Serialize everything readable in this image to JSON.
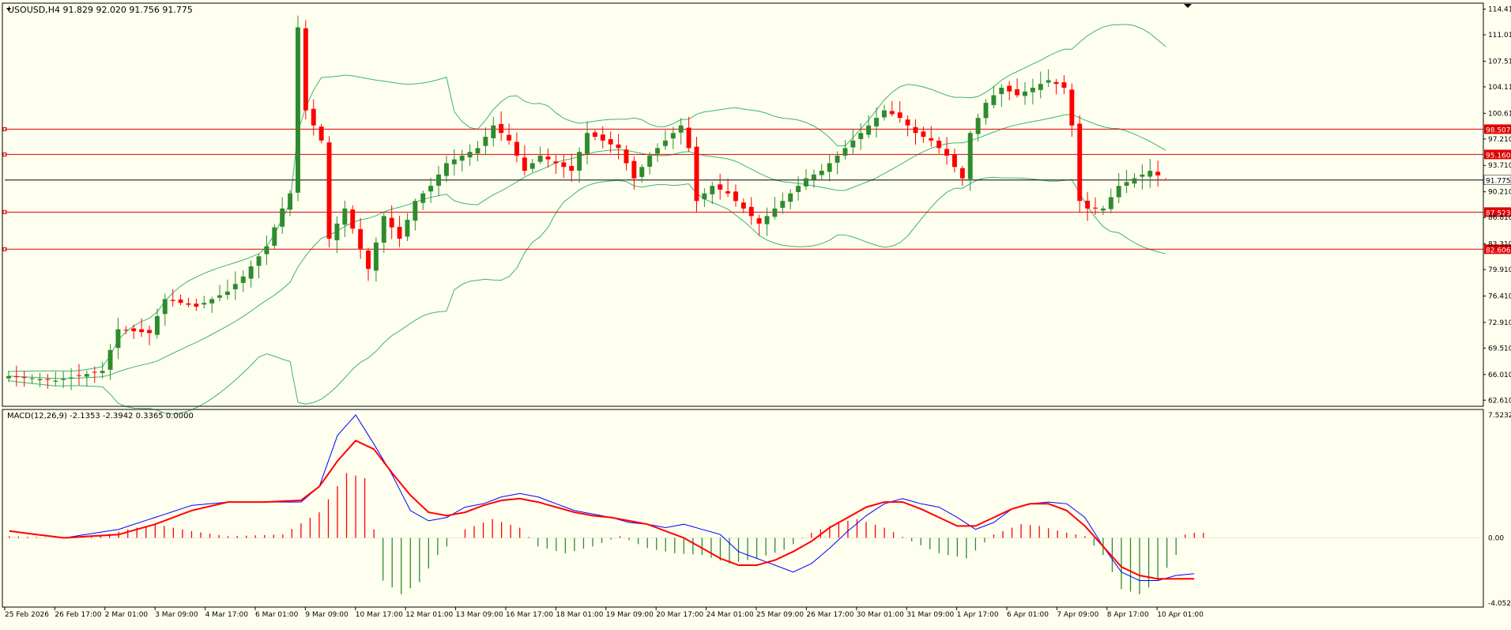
{
  "header": {
    "symbol_line": "USOUSD,H4  91.829 92.020 91.756 91.775"
  },
  "colors": {
    "background": "#fffff0",
    "bull": "#2e8b2e",
    "bear": "#ff0000",
    "band": "#3cb371",
    "hline": "#e00000",
    "price_line": "#000000",
    "macd_line": "#0000ff",
    "signal_line": "#ff0000"
  },
  "chart_data": [
    {
      "type": "candlestick",
      "title": "USOUSD,H4",
      "ohlc_readout": {
        "open": 91.829,
        "high": 92.02,
        "low": 91.756,
        "close": 91.775
      },
      "current_price": 91.775,
      "ylim": [
        61.8,
        115.2
      ],
      "y_ticks": [
        "114.410",
        "111.010",
        "107.510",
        "104.110",
        "100.610",
        "97.210",
        "93.710",
        "90.210",
        "86.810",
        "83.310",
        "79.910",
        "76.410",
        "72.910",
        "69.510",
        "66.010",
        "62.610"
      ],
      "x_ticks": [
        "25 Feb 2026",
        "26 Feb 17:00",
        "2 Mar 01:00",
        "3 Mar 09:00",
        "4 Mar 17:00",
        "6 Mar 01:00",
        "9 Mar 09:00",
        "10 Mar 17:00",
        "12 Mar 01:00",
        "13 Mar 09:00",
        "16 Mar 17:00",
        "18 Mar 01:00",
        "19 Mar 09:00",
        "20 Mar 17:00",
        "24 Mar 01:00",
        "25 Mar 09:00",
        "26 Mar 17:00",
        "30 Mar 01:00",
        "31 Mar 09:00",
        "1 Apr 17:00",
        "6 Apr 01:00",
        "7 Apr 09:00",
        "8 Apr 17:00",
        "10 Apr 01:00"
      ],
      "horizontal_levels": [
        "98.507",
        "95.160",
        "87.523",
        "82.606"
      ],
      "price_label": "91.775",
      "key_closes": [
        [
          0,
          65.8
        ],
        [
          6,
          65.2
        ],
        [
          12,
          66.5
        ],
        [
          14,
          72
        ],
        [
          18,
          71.5
        ],
        [
          20,
          76
        ],
        [
          24,
          75
        ],
        [
          28,
          77
        ],
        [
          30,
          79
        ],
        [
          33,
          83
        ],
        [
          35,
          88
        ],
        [
          36,
          90
        ],
        [
          37,
          112
        ],
        [
          38,
          101
        ],
        [
          40,
          97
        ],
        [
          41,
          84
        ],
        [
          43,
          88
        ],
        [
          46,
          80
        ],
        [
          48,
          87
        ],
        [
          50,
          84
        ],
        [
          52,
          89
        ],
        [
          54,
          91
        ],
        [
          56,
          94
        ],
        [
          58,
          95
        ],
        [
          60,
          96
        ],
        [
          62,
          99
        ],
        [
          64,
          97
        ],
        [
          66,
          93
        ],
        [
          68,
          95
        ],
        [
          70,
          94
        ],
        [
          72,
          93
        ],
        [
          74,
          98
        ],
        [
          76,
          97
        ],
        [
          78,
          96
        ],
        [
          80,
          92
        ],
        [
          82,
          95
        ],
        [
          84,
          97
        ],
        [
          86,
          99
        ],
        [
          87,
          96
        ],
        [
          88,
          89
        ],
        [
          90,
          91
        ],
        [
          92,
          90
        ],
        [
          94,
          88
        ],
        [
          96,
          86
        ],
        [
          98,
          88
        ],
        [
          100,
          90
        ],
        [
          102,
          92
        ],
        [
          104,
          93
        ],
        [
          106,
          95
        ],
        [
          108,
          97
        ],
        [
          110,
          99
        ],
        [
          112,
          101
        ],
        [
          114,
          100
        ],
        [
          116,
          98
        ],
        [
          118,
          97
        ],
        [
          120,
          95
        ],
        [
          122,
          92
        ],
        [
          123,
          98
        ],
        [
          125,
          102
        ],
        [
          127,
          104
        ],
        [
          129,
          103
        ],
        [
          131,
          104
        ],
        [
          133,
          105
        ],
        [
          135,
          104
        ],
        [
          136,
          99
        ],
        [
          137,
          89
        ],
        [
          138,
          88
        ],
        [
          140,
          88
        ],
        [
          142,
          91
        ],
        [
          144,
          92
        ],
        [
          146,
          93
        ],
        [
          148,
          91.775
        ]
      ]
    },
    {
      "type": "line",
      "title": "MACD(12,26,9)",
      "readout": "MACD(12,26,9) -2.1353 -2.3942 0.3365 0.0000",
      "values": {
        "macd": -2.1353,
        "signal": -2.3942,
        "histogram": 0.3365,
        "extra": 0.0
      },
      "ylim": [
        -4.0526,
        7.5232
      ],
      "y_ticks": [
        "7.5232",
        "0.00",
        "-4.0526"
      ],
      "macd_key": [
        [
          0,
          0.4
        ],
        [
          6,
          0
        ],
        [
          12,
          0.5
        ],
        [
          16,
          1.2
        ],
        [
          20,
          1.9
        ],
        [
          24,
          2.1
        ],
        [
          28,
          2.1
        ],
        [
          32,
          2.1
        ],
        [
          34,
          3
        ],
        [
          36,
          6
        ],
        [
          38,
          7.2
        ],
        [
          40,
          5.5
        ],
        [
          42,
          3.7
        ],
        [
          44,
          1.6
        ],
        [
          46,
          1
        ],
        [
          48,
          1.2
        ],
        [
          50,
          1.8
        ],
        [
          52,
          2
        ],
        [
          54,
          2.4
        ],
        [
          56,
          2.6
        ],
        [
          58,
          2.4
        ],
        [
          60,
          2
        ],
        [
          62,
          1.6
        ],
        [
          64,
          1.4
        ],
        [
          66,
          1.2
        ],
        [
          68,
          0.9
        ],
        [
          70,
          0.8
        ],
        [
          72,
          0.6
        ],
        [
          74,
          0.8
        ],
        [
          76,
          0.5
        ],
        [
          78,
          0.2
        ],
        [
          80,
          -0.8
        ],
        [
          82,
          -1.2
        ],
        [
          84,
          -1.6
        ],
        [
          86,
          -2
        ],
        [
          88,
          -1.5
        ],
        [
          90,
          -0.6
        ],
        [
          92,
          0.4
        ],
        [
          94,
          1.3
        ],
        [
          96,
          2
        ],
        [
          98,
          2.3
        ],
        [
          100,
          2
        ],
        [
          102,
          1.8
        ],
        [
          104,
          1.2
        ],
        [
          106,
          0.5
        ],
        [
          108,
          0.9
        ],
        [
          110,
          1.7
        ],
        [
          112,
          2
        ],
        [
          114,
          2.1
        ],
        [
          116,
          2
        ],
        [
          118,
          1.2
        ],
        [
          120,
          -0.5
        ],
        [
          122,
          -2
        ],
        [
          124,
          -2.5
        ],
        [
          126,
          -2.5
        ],
        [
          128,
          -2.2
        ],
        [
          130,
          -2.1
        ]
      ],
      "signal_key": [
        [
          0,
          0.4
        ],
        [
          6,
          0
        ],
        [
          12,
          0.2
        ],
        [
          16,
          0.8
        ],
        [
          20,
          1.6
        ],
        [
          24,
          2.1
        ],
        [
          28,
          2.1
        ],
        [
          32,
          2.2
        ],
        [
          34,
          3
        ],
        [
          36,
          4.5
        ],
        [
          38,
          5.7
        ],
        [
          40,
          5.2
        ],
        [
          42,
          3.8
        ],
        [
          44,
          2.5
        ],
        [
          46,
          1.5
        ],
        [
          48,
          1.3
        ],
        [
          50,
          1.5
        ],
        [
          52,
          1.9
        ],
        [
          54,
          2.2
        ],
        [
          56,
          2.3
        ],
        [
          58,
          2.1
        ],
        [
          60,
          1.8
        ],
        [
          62,
          1.5
        ],
        [
          64,
          1.3
        ],
        [
          66,
          1.2
        ],
        [
          68,
          1
        ],
        [
          70,
          0.8
        ],
        [
          72,
          0.4
        ],
        [
          74,
          0
        ],
        [
          76,
          -0.6
        ],
        [
          78,
          -1.2
        ],
        [
          80,
          -1.6
        ],
        [
          82,
          -1.6
        ],
        [
          84,
          -1.3
        ],
        [
          86,
          -0.8
        ],
        [
          88,
          -0.2
        ],
        [
          90,
          0.6
        ],
        [
          92,
          1.2
        ],
        [
          94,
          1.8
        ],
        [
          96,
          2.1
        ],
        [
          98,
          2.1
        ],
        [
          100,
          1.7
        ],
        [
          102,
          1.2
        ],
        [
          104,
          0.7
        ],
        [
          106,
          0.7
        ],
        [
          108,
          1.2
        ],
        [
          110,
          1.7
        ],
        [
          112,
          2
        ],
        [
          114,
          2
        ],
        [
          116,
          1.6
        ],
        [
          118,
          0.7
        ],
        [
          120,
          -0.5
        ],
        [
          122,
          -1.7
        ],
        [
          124,
          -2.2
        ],
        [
          126,
          -2.4
        ],
        [
          128,
          -2.4
        ],
        [
          130,
          -2.4
        ]
      ],
      "histogram_key": [
        [
          0,
          0.1
        ],
        [
          6,
          0
        ],
        [
          10,
          0.1
        ],
        [
          13,
          0.5
        ],
        [
          16,
          0.8
        ],
        [
          20,
          0.4
        ],
        [
          24,
          0.1
        ],
        [
          30,
          0.2
        ],
        [
          34,
          1.5
        ],
        [
          37,
          3.8
        ],
        [
          39,
          3.5
        ],
        [
          41,
          -2.5
        ],
        [
          43,
          -3.3
        ],
        [
          45,
          -2.6
        ],
        [
          47,
          -1
        ],
        [
          50,
          0.5
        ],
        [
          53,
          1.1
        ],
        [
          56,
          0.6
        ],
        [
          58,
          -0.5
        ],
        [
          61,
          -0.9
        ],
        [
          64,
          -0.5
        ],
        [
          67,
          0.1
        ],
        [
          70,
          -0.6
        ],
        [
          73,
          -0.9
        ],
        [
          76,
          -1
        ],
        [
          79,
          -1.5
        ],
        [
          82,
          -1.2
        ],
        [
          85,
          -0.7
        ],
        [
          88,
          0.3
        ],
        [
          91,
          0.9
        ],
        [
          93,
          1.1
        ],
        [
          96,
          0.6
        ],
        [
          99,
          -0.2
        ],
        [
          102,
          -0.9
        ],
        [
          105,
          -1.2
        ],
        [
          108,
          0.2
        ],
        [
          111,
          0.8
        ],
        [
          113,
          0.7
        ],
        [
          116,
          0.3
        ],
        [
          118,
          0.1
        ],
        [
          120,
          -1
        ],
        [
          122,
          -3
        ],
        [
          124,
          -3.3
        ],
        [
          126,
          -2.5
        ],
        [
          128,
          -1
        ],
        [
          129,
          0.2
        ],
        [
          130,
          0.3
        ]
      ]
    }
  ]
}
